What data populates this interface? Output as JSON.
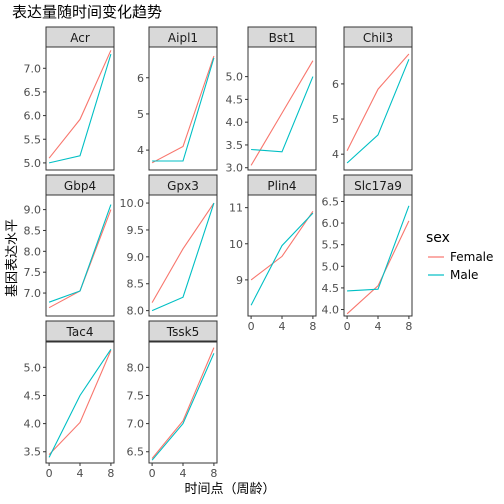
{
  "chart_data": {
    "type": "line",
    "title": "表达量随时间变化趋势",
    "xlabel": "时间点（周龄）",
    "ylabel": "基因表达水平",
    "x": [
      0,
      4,
      8
    ],
    "x_ticks": [
      "0",
      "4",
      "8"
    ],
    "legend": {
      "title": "sex",
      "placement": "right",
      "entries": [
        {
          "name": "Female",
          "color": "#F8766D"
        },
        {
          "name": "Male",
          "color": "#00BFC4"
        }
      ]
    },
    "facets": [
      {
        "name": "Acr",
        "ylim": [
          4.85,
          7.45
        ],
        "yticks": [
          "5.0",
          "5.5",
          "6.0",
          "6.5",
          "7.0"
        ],
        "ytick_values": [
          5.0,
          5.5,
          6.0,
          6.5,
          7.0
        ],
        "series": [
          {
            "name": "Female",
            "values": [
              5.1,
              5.92,
              7.38
            ]
          },
          {
            "name": "Male",
            "values": [
              5.0,
              5.15,
              7.3
            ]
          }
        ]
      },
      {
        "name": "Aipl1",
        "ylim": [
          3.45,
          6.85
        ],
        "yticks": [
          "4",
          "5",
          "6"
        ],
        "ytick_values": [
          4,
          5,
          6
        ],
        "series": [
          {
            "name": "Female",
            "values": [
              3.65,
              4.1,
              6.6
            ]
          },
          {
            "name": "Male",
            "values": [
              3.7,
              3.7,
              6.55
            ]
          }
        ]
      },
      {
        "name": "Bst1",
        "ylim": [
          2.95,
          5.65
        ],
        "yticks": [
          "3.0",
          "3.5",
          "4.0",
          "4.5",
          "5.0"
        ],
        "ytick_values": [
          3.0,
          3.5,
          4.0,
          4.5,
          5.0
        ],
        "series": [
          {
            "name": "Female",
            "values": [
              3.05,
              4.2,
              5.35
            ]
          },
          {
            "name": "Male",
            "values": [
              3.4,
              3.35,
              5.0
            ]
          }
        ]
      },
      {
        "name": "Chil3",
        "ylim": [
          3.55,
          7.05
        ],
        "yticks": [
          "4",
          "5",
          "6"
        ],
        "ytick_values": [
          4,
          5,
          6
        ],
        "series": [
          {
            "name": "Female",
            "values": [
              4.1,
              5.85,
              6.85
            ]
          },
          {
            "name": "Male",
            "values": [
              3.75,
              4.55,
              6.7
            ]
          }
        ]
      },
      {
        "name": "Gbp4",
        "ylim": [
          6.45,
          9.35
        ],
        "yticks": [
          "7.0",
          "7.5",
          "8.0",
          "8.5",
          "9.0"
        ],
        "ytick_values": [
          7.0,
          7.5,
          8.0,
          8.5,
          9.0
        ],
        "series": [
          {
            "name": "Female",
            "values": [
              6.65,
              7.05,
              9.0
            ]
          },
          {
            "name": "Male",
            "values": [
              6.78,
              7.05,
              9.12
            ]
          }
        ]
      },
      {
        "name": "Gpx3",
        "ylim": [
          7.9,
          10.15
        ],
        "yticks": [
          "8.0",
          "8.5",
          "9.0",
          "9.5",
          "10.0"
        ],
        "ytick_values": [
          8.0,
          8.5,
          9.0,
          9.5,
          10.0
        ],
        "series": [
          {
            "name": "Female",
            "values": [
              8.15,
              9.15,
              10.0
            ]
          },
          {
            "name": "Male",
            "values": [
              8.0,
              8.25,
              10.0
            ]
          }
        ]
      },
      {
        "name": "Plin4",
        "ylim": [
          8.0,
          11.35
        ],
        "yticks": [
          "9",
          "10",
          "11"
        ],
        "ytick_values": [
          9,
          10,
          11
        ],
        "series": [
          {
            "name": "Female",
            "values": [
              9.0,
              9.65,
              10.9
            ]
          },
          {
            "name": "Male",
            "values": [
              8.3,
              9.95,
              10.85
            ]
          }
        ]
      },
      {
        "name": "Slc17a9",
        "ylim": [
          3.85,
          6.65
        ],
        "yticks": [
          "4.0",
          "4.5",
          "5.0",
          "5.5",
          "6.0",
          "6.5"
        ],
        "ytick_values": [
          4.0,
          4.5,
          5.0,
          5.5,
          6.0,
          6.5
        ],
        "series": [
          {
            "name": "Female",
            "values": [
              3.9,
              4.55,
              6.05
            ]
          },
          {
            "name": "Male",
            "values": [
              4.43,
              4.47,
              6.4
            ]
          }
        ]
      },
      {
        "name": "Tac4",
        "ylim": [
          3.3,
          5.45
        ],
        "yticks": [
          "3.5",
          "4.0",
          "4.5",
          "5.0"
        ],
        "ytick_values": [
          3.5,
          4.0,
          4.5,
          5.0
        ],
        "series": [
          {
            "name": "Female",
            "values": [
              3.45,
              4.02,
              5.3
            ]
          },
          {
            "name": "Male",
            "values": [
              3.4,
              4.5,
              5.32
            ]
          }
        ]
      },
      {
        "name": "Tssk5",
        "ylim": [
          6.3,
          8.45
        ],
        "yticks": [
          "6.5",
          "7.0",
          "7.5",
          "8.0"
        ],
        "ytick_values": [
          6.5,
          7.0,
          7.5,
          8.0
        ],
        "series": [
          {
            "name": "Female",
            "values": [
              6.38,
              7.05,
              8.35
            ]
          },
          {
            "name": "Male",
            "values": [
              6.35,
              7.0,
              8.25
            ]
          }
        ]
      }
    ]
  }
}
